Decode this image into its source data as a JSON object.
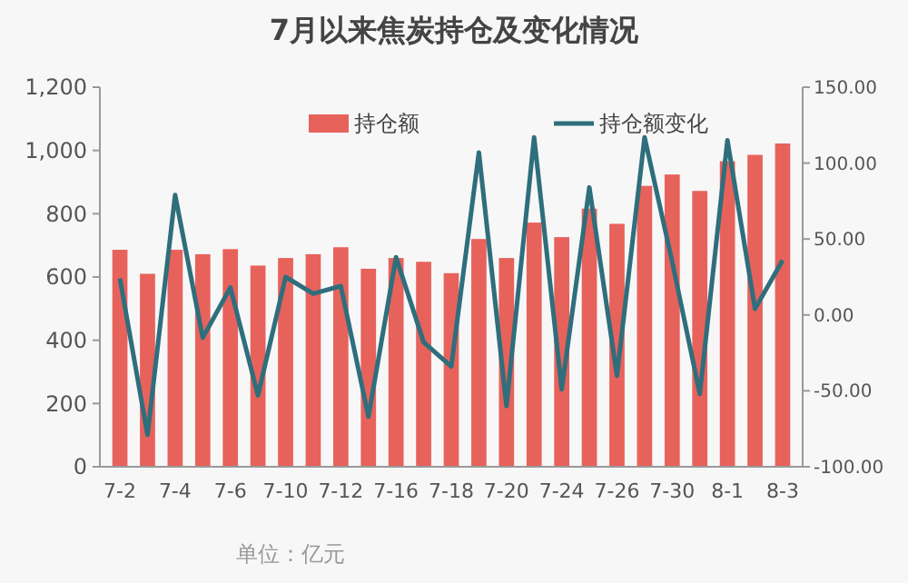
{
  "chart_data": {
    "type": "bar",
    "title": "7月以来焦炭持仓及变化情况",
    "categories": [
      "7-2",
      null,
      "7-4",
      null,
      "7-6",
      null,
      "7-10",
      null,
      "7-12",
      null,
      "7-16",
      null,
      "7-18",
      null,
      "7-20",
      null,
      "7-24",
      null,
      "7-26",
      null,
      "7-30",
      null,
      "8-1",
      null,
      "8-3"
    ],
    "series": [
      {
        "name": "持仓额",
        "color": "#e8625c",
        "values": [
          686,
          610,
          686,
          672,
          688,
          636,
          660,
          672,
          694,
          626,
          660,
          648,
          612,
          720,
          660,
          772,
          726,
          816,
          768,
          888,
          924,
          872,
          966,
          986,
          1022
        ]
      },
      {
        "name": "持仓额变化",
        "type": "line",
        "axis": "y2",
        "color": "#2f6e7c",
        "values": [
          24,
          -79,
          79,
          -15,
          18,
          -53,
          25,
          14,
          19,
          -67,
          38,
          -18,
          -34,
          107,
          -60,
          117,
          -49,
          84,
          -40,
          117,
          35,
          -52,
          115,
          4,
          36
        ]
      }
    ],
    "ylim": [
      0,
      1200
    ],
    "yticks": [
      0,
      200,
      400,
      600,
      800,
      {
        "value": 1000,
        "label": "1,000"
      },
      {
        "value": 1200,
        "label": "1,200"
      }
    ],
    "y2lim": [
      -100,
      150
    ],
    "y2ticks": [
      {
        "value": -100,
        "label": "-100.00"
      },
      {
        "value": -50,
        "label": "-50.00"
      },
      {
        "value": 0,
        "label": "0.00"
      },
      {
        "value": 50,
        "label": "50.00"
      },
      {
        "value": 100,
        "label": "100.00"
      },
      {
        "value": 150,
        "label": "150.00"
      }
    ],
    "legend": "top",
    "grid": false,
    "marker": "none",
    "line_style": "solid",
    "annotations": [
      "单位：亿元"
    ]
  }
}
